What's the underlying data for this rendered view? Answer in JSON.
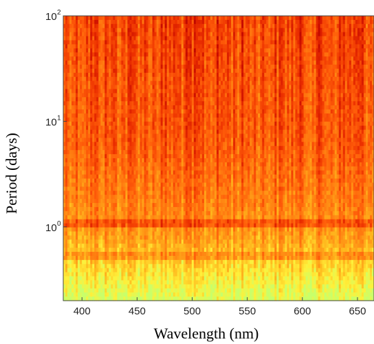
{
  "chart_data": {
    "type": "heatmap",
    "title": "",
    "xlabel": "Wavelength (nm)",
    "ylabel": "Period (days)",
    "x_range": [
      383,
      665
    ],
    "y_range": [
      0.2,
      100
    ],
    "y_scale": "log",
    "x_ticks": [
      "400",
      "450",
      "500",
      "550",
      "600",
      "650"
    ],
    "x_tick_values": [
      400,
      450,
      500,
      550,
      600,
      650
    ],
    "y_ticks": [
      {
        "base": "10",
        "exp": "0",
        "value": 1
      },
      {
        "base": "10",
        "exp": "1",
        "value": 10
      },
      {
        "base": "10",
        "exp": "2",
        "value": 100
      }
    ],
    "colormap": [
      "#9a0000",
      "#c80a00",
      "#ec3000",
      "#ff5e0a",
      "#ff8c14",
      "#ffba1e",
      "#fff03a",
      "#c8ff6a"
    ],
    "dominant_colors": {
      "long_period": "#e8280a",
      "mid_period": "#ff6a10",
      "short_period": "#ffe84a"
    },
    "legend": "none",
    "grid": false
  }
}
